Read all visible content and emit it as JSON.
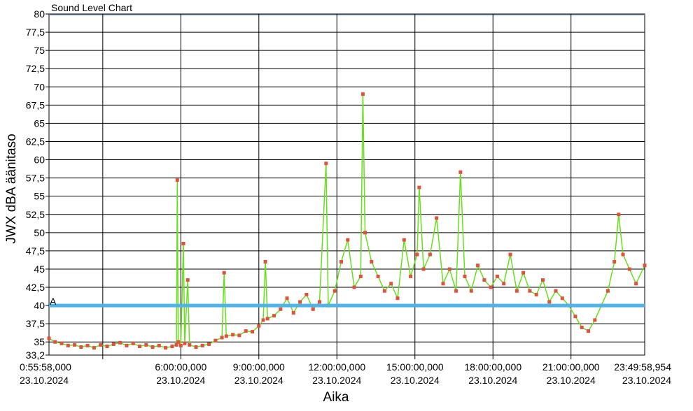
{
  "chart_data": {
    "type": "line",
    "title": "Sound Level Chart",
    "xlabel": "Aika",
    "ylabel": "JWX dBA äänitaso",
    "ylim": [
      33.2,
      80
    ],
    "y_ticks": [
      {
        "value": 33.2,
        "label": "33,2"
      },
      {
        "value": 35,
        "label": "35"
      },
      {
        "value": 37.5,
        "label": "37,5"
      },
      {
        "value": 40,
        "label": "40"
      },
      {
        "value": 42.5,
        "label": "42,5"
      },
      {
        "value": 45,
        "label": "45"
      },
      {
        "value": 47.5,
        "label": "47,5"
      },
      {
        "value": 50,
        "label": "50"
      },
      {
        "value": 52.5,
        "label": "52,5"
      },
      {
        "value": 55,
        "label": "55"
      },
      {
        "value": 57.5,
        "label": "57,5"
      },
      {
        "value": 60,
        "label": "60"
      },
      {
        "value": 62.5,
        "label": "62,5"
      },
      {
        "value": 65,
        "label": "65"
      },
      {
        "value": 67.5,
        "label": "67,5"
      },
      {
        "value": 70,
        "label": "70"
      },
      {
        "value": 72.5,
        "label": "72,5"
      },
      {
        "value": 75,
        "label": "75"
      },
      {
        "value": 77.5,
        "label": "77,5"
      },
      {
        "value": 80,
        "label": "80"
      }
    ],
    "xlim": [
      "0:55:58",
      "23:49:58.954"
    ],
    "x_ticks": [
      {
        "time": "0:55:58",
        "label": "0:55:58,000",
        "date": "23.10.2024"
      },
      {
        "time": "6:00:00",
        "label": "6:00:00,000",
        "date": "23.10.2024"
      },
      {
        "time": "9:00:00",
        "label": "9:00:00,000",
        "date": "23.10.2024"
      },
      {
        "time": "12:00:00",
        "label": "12:00:00,000",
        "date": "23.10.2024"
      },
      {
        "time": "15:00:00",
        "label": "15:00:00,000",
        "date": "23.10.2024"
      },
      {
        "time": "18:00:00",
        "label": "18:00:00,000",
        "date": "23.10.2024"
      },
      {
        "time": "21:00:00",
        "label": "21:00:00,000",
        "date": "23.10.2024"
      },
      {
        "time": "23:49:58.954",
        "label": "23:49:58,954",
        "date": "23.10.2024"
      }
    ],
    "vertical_gridlines": [
      "3:00:00",
      "6:00:00",
      "9:00:00",
      "12:00:00",
      "15:00:00",
      "18:00:00",
      "21:00:00"
    ],
    "grid": true,
    "reference_line": {
      "value": 40,
      "label": "A",
      "color": "#4fb3e8"
    },
    "series": [
      {
        "color": "#66e01a",
        "peak_markers_color": "#e0523a",
        "points": [
          [
            "0:55:58",
            35.5
          ],
          [
            "1:10:00",
            35.0
          ],
          [
            "1:25:00",
            34.8
          ],
          [
            "1:40:00",
            34.5
          ],
          [
            "1:55:00",
            34.6
          ],
          [
            "2:10:00",
            34.3
          ],
          [
            "2:25:00",
            34.5
          ],
          [
            "2:40:00",
            34.2
          ],
          [
            "2:55:00",
            34.6
          ],
          [
            "3:10:00",
            34.4
          ],
          [
            "3:25:00",
            34.7
          ],
          [
            "3:40:00",
            34.9
          ],
          [
            "3:55:00",
            34.5
          ],
          [
            "4:10:00",
            34.8
          ],
          [
            "4:25:00",
            34.4
          ],
          [
            "4:40:00",
            34.6
          ],
          [
            "4:55:00",
            34.3
          ],
          [
            "5:10:00",
            34.5
          ],
          [
            "5:25:00",
            34.2
          ],
          [
            "5:40:00",
            34.4
          ],
          [
            "5:50:00",
            34.6
          ],
          [
            "5:52:00",
            57.2
          ],
          [
            "5:54:00",
            35.0
          ],
          [
            "6:00:00",
            34.5
          ],
          [
            "6:06:00",
            48.5
          ],
          [
            "6:09:00",
            34.8
          ],
          [
            "6:16:00",
            43.5
          ],
          [
            "6:20:00",
            34.6
          ],
          [
            "6:35:00",
            34.3
          ],
          [
            "6:50:00",
            34.5
          ],
          [
            "7:05:00",
            34.7
          ],
          [
            "7:20:00",
            35.2
          ],
          [
            "7:35:00",
            35.6
          ],
          [
            "7:40:00",
            44.5
          ],
          [
            "7:45:00",
            35.8
          ],
          [
            "8:00:00",
            36.0
          ],
          [
            "8:15:00",
            35.9
          ],
          [
            "8:30:00",
            36.5
          ],
          [
            "8:45:00",
            36.4
          ],
          [
            "9:00:00",
            37.2
          ],
          [
            "9:10:00",
            38.0
          ],
          [
            "9:15:00",
            46.0
          ],
          [
            "9:20:00",
            38.2
          ],
          [
            "9:35:00",
            38.6
          ],
          [
            "9:50:00",
            39.5
          ],
          [
            "10:05:00",
            41.0
          ],
          [
            "10:20:00",
            39.0
          ],
          [
            "10:35:00",
            40.5
          ],
          [
            "10:50:00",
            41.5
          ],
          [
            "11:05:00",
            39.5
          ],
          [
            "11:20:00",
            40.5
          ],
          [
            "11:35:00",
            59.5
          ],
          [
            "11:40:00",
            40.0
          ],
          [
            "11:55:00",
            42.0
          ],
          [
            "12:10:00",
            46.0
          ],
          [
            "12:25:00",
            49.0
          ],
          [
            "12:40:00",
            42.5
          ],
          [
            "12:55:00",
            44.0
          ],
          [
            "13:00:00",
            69.0
          ],
          [
            "13:05:00",
            50.0
          ],
          [
            "13:20:00",
            46.0
          ],
          [
            "13:35:00",
            44.0
          ],
          [
            "13:50:00",
            42.0
          ],
          [
            "14:05:00",
            43.0
          ],
          [
            "14:20:00",
            41.0
          ],
          [
            "14:35:00",
            49.0
          ],
          [
            "14:50:00",
            44.0
          ],
          [
            "15:05:00",
            47.0
          ],
          [
            "15:10:00",
            56.2
          ],
          [
            "15:20:00",
            45.0
          ],
          [
            "15:35:00",
            47.0
          ],
          [
            "15:50:00",
            52.0
          ],
          [
            "16:05:00",
            43.0
          ],
          [
            "16:20:00",
            45.0
          ],
          [
            "16:35:00",
            42.0
          ],
          [
            "16:45:00",
            58.3
          ],
          [
            "16:55:00",
            44.0
          ],
          [
            "17:10:00",
            42.0
          ],
          [
            "17:25:00",
            45.5
          ],
          [
            "17:40:00",
            43.5
          ],
          [
            "17:55:00",
            42.5
          ],
          [
            "18:10:00",
            44.0
          ],
          [
            "18:25:00",
            43.0
          ],
          [
            "18:40:00",
            47.0
          ],
          [
            "18:55:00",
            42.0
          ],
          [
            "19:10:00",
            44.5
          ],
          [
            "19:25:00",
            42.0
          ],
          [
            "19:40:00",
            41.5
          ],
          [
            "19:55:00",
            43.5
          ],
          [
            "20:10:00",
            40.5
          ],
          [
            "20:25:00",
            42.0
          ],
          [
            "20:40:00",
            41.0
          ],
          [
            "20:55:00",
            40.0
          ],
          [
            "21:10:00",
            38.5
          ],
          [
            "21:25:00",
            37.0
          ],
          [
            "21:40:00",
            36.5
          ],
          [
            "21:55:00",
            38.0
          ],
          [
            "22:10:00",
            40.0
          ],
          [
            "22:25:00",
            42.0
          ],
          [
            "22:40:00",
            46.0
          ],
          [
            "22:50:00",
            52.5
          ],
          [
            "23:00:00",
            47.0
          ],
          [
            "23:15:00",
            45.0
          ],
          [
            "23:30:00",
            43.0
          ],
          [
            "23:49:58.954",
            45.5
          ]
        ]
      }
    ]
  }
}
